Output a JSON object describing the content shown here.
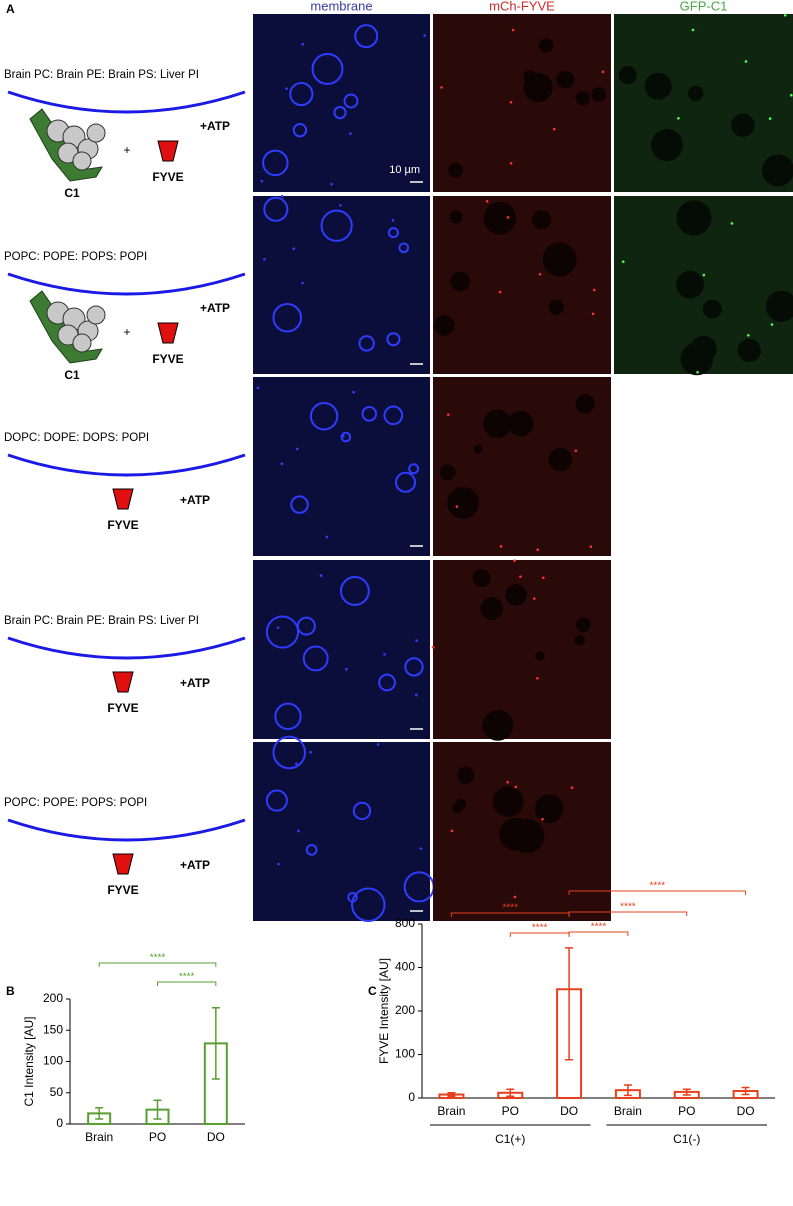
{
  "panel_labels": [
    "A",
    "B",
    "C"
  ],
  "figure_a": {
    "columns": [
      "membrane",
      "mCh-FYVE",
      "GFP-C1"
    ],
    "scale_bar": "10 µm",
    "rows": [
      {
        "lipids": "Brain PC: Brain PE: Brain PS: Liver PI",
        "proteins": [
          "C1",
          "FYVE"
        ],
        "join": "+",
        "treatment": "+ATP"
      },
      {
        "lipids": "POPC: POPE: POPS: POPI",
        "proteins": [
          "C1",
          "FYVE"
        ],
        "join": "+",
        "treatment": "+ATP"
      },
      {
        "lipids": "DOPC: DOPE: DOPS: POPI",
        "proteins": [
          "FYVE"
        ],
        "treatment": "+ATP"
      },
      {
        "lipids": "Brain PC: Brain PE: Brain PS: Liver PI",
        "proteins": [
          "FYVE"
        ],
        "treatment": "+ATP"
      },
      {
        "lipids": "POPC: POPE: POPS: POPI",
        "proteins": [
          "FYVE"
        ],
        "treatment": "+ATP"
      }
    ]
  },
  "chart_data": [
    {
      "type": "bar",
      "ylabel": "C1 Intensity [AU]",
      "categories": [
        "Brain",
        "PO",
        "DO"
      ],
      "values": [
        17,
        23,
        129
      ],
      "error_minus": [
        9,
        15,
        57
      ],
      "error_plus": [
        9,
        15,
        57
      ],
      "color": "#5a9e2f",
      "ylim": [
        0,
        200
      ],
      "yticks": [
        0,
        50,
        100,
        150,
        200
      ],
      "significance": [
        {
          "pair": [
            0,
            2
          ],
          "label": "****"
        },
        {
          "pair": [
            1,
            2
          ],
          "label": "****"
        }
      ]
    },
    {
      "type": "bar",
      "ylabel": "FYVE Intensity [AU]",
      "categories": [
        "Brain",
        "PO",
        "DO",
        "Brain",
        "PO",
        "DO"
      ],
      "values": [
        8,
        12,
        300,
        18,
        14,
        16
      ],
      "error_minus": [
        4,
        8,
        212,
        12,
        7,
        8
      ],
      "error_plus": [
        4,
        8,
        280,
        12,
        6,
        8
      ],
      "color": "#e8401c",
      "ylim": [
        0,
        800
      ],
      "yticks": [
        0,
        100,
        200,
        400,
        800
      ],
      "groups": [
        {
          "name": "C1(+)",
          "span": [
            0,
            2
          ]
        },
        {
          "name": "C1(-)",
          "span": [
            3,
            5
          ]
        }
      ],
      "significance": [
        {
          "pair": [
            0,
            2
          ],
          "label": "****"
        },
        {
          "pair": [
            1,
            2
          ],
          "label": "****"
        },
        {
          "pair": [
            2,
            5
          ],
          "label": "****"
        },
        {
          "pair": [
            2,
            4
          ],
          "label": "****"
        },
        {
          "pair": [
            2,
            3
          ],
          "label": "****"
        }
      ]
    }
  ]
}
